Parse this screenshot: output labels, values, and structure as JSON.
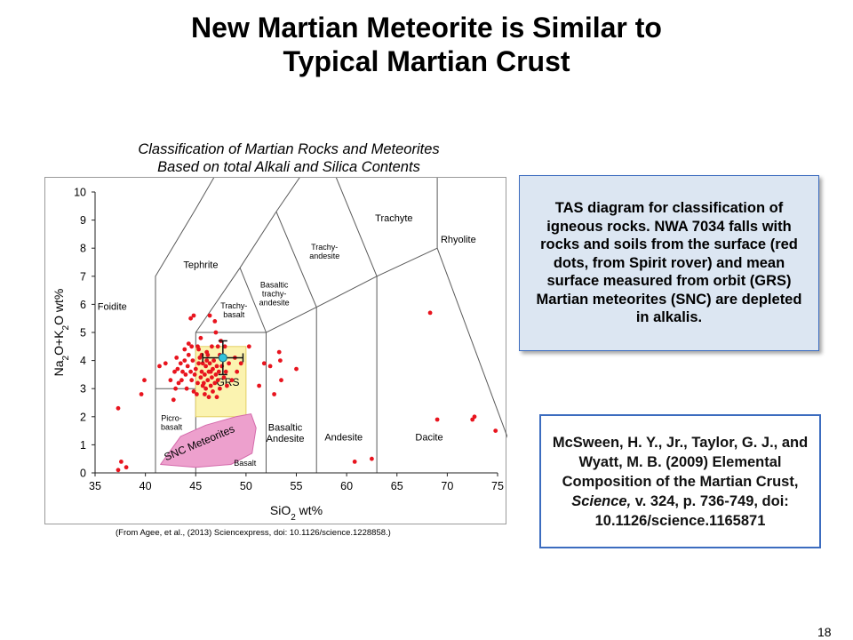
{
  "slide": {
    "title_line1": "New Martian Meteorite is Similar to",
    "title_line2": "Typical Martian Crust",
    "page_number": "18"
  },
  "chart_caption": {
    "line1": "Classification of Martian Rocks and Meteorites",
    "line2": "Based on total Alkali and Silica Contents"
  },
  "source_note": "(From Agee, et al., (2013) Sciencexpress, doi: 10.1126/science.1228858.)",
  "info_box": {
    "text": "TAS diagram for classification of igneous rocks. NWA 7034 falls with rocks and soils from the surface (red dots, from Spirit rover) and mean surface measured from orbit (GRS) Martian meteorites (SNC) are depleted in alkalis."
  },
  "citation": {
    "authors": "McSween, H. Y., Jr., Taylor, G. J., and Wyatt, M. B. (2009) Elemental Composition of the Martian Crust,",
    "journal": "Science,",
    "rest": "v. 324, p. 736-749, doi: 10.1126/science.1165871"
  },
  "colors": {
    "points": "#e8141e",
    "grs_fill": "#fbf3b0",
    "grs_stroke": "#e3cf63",
    "snc_fill": "#eda0cd",
    "snc_stroke": "#d46aab",
    "nwa_point": "#32c3dc",
    "boundary": "#5a5a5a",
    "info_bg": "#dce6f2",
    "box_border": "#3c6cbf"
  },
  "chart_data": {
    "type": "scatter",
    "xlabel": "SiO2 wt%",
    "ylabel": "Na2O+K2O wt%",
    "xlim": [
      35,
      75
    ],
    "ylim": [
      0,
      10
    ],
    "x_ticks": [
      35,
      40,
      45,
      50,
      55,
      60,
      65,
      70,
      75
    ],
    "y_ticks": [
      0,
      1,
      2,
      3,
      4,
      5,
      6,
      7,
      8,
      9,
      10
    ],
    "grid": false,
    "fields": [
      {
        "name": "Foidite",
        "x": 36.7,
        "y": 5.8
      },
      {
        "name": "Tephrite",
        "x": 45.5,
        "y": 7.3
      },
      {
        "name": "Trachy-\nbasalt",
        "x": 48.8,
        "y": 5.85
      },
      {
        "name": "Basaltic\ntrachy-\nandesite",
        "x": 52.8,
        "y": 6.6
      },
      {
        "name": "Trachy-\nandesite",
        "x": 57.8,
        "y": 7.95
      },
      {
        "name": "Trachyte",
        "x": 64.7,
        "y": 8.95
      },
      {
        "name": "Rhyolite",
        "x": 71.1,
        "y": 8.2
      },
      {
        "name": "Picro-\nbasalt",
        "x": 42.6,
        "y": 1.85
      },
      {
        "name": "Basaltic\nAndesite",
        "x": 53.9,
        "y": 1.5
      },
      {
        "name": "Andesite",
        "x": 59.7,
        "y": 1.15
      },
      {
        "name": "Dacite",
        "x": 68.2,
        "y": 1.15
      },
      {
        "name": "Basalt",
        "x": 49.9,
        "y": 0.25
      },
      {
        "name": "GRS",
        "x": 48.2,
        "y": 3.1
      }
    ],
    "annotations": [
      {
        "label": "SNC Meteorites",
        "x": 45.5,
        "y": 0.95,
        "rotation": -23
      }
    ],
    "grs_range": {
      "x": [
        45.0,
        50.0
      ],
      "y": [
        2.0,
        4.5
      ]
    },
    "snc_region": [
      [
        41.5,
        0.3
      ],
      [
        43.5,
        1.3
      ],
      [
        46.0,
        1.7
      ],
      [
        49.0,
        2.0
      ],
      [
        50.5,
        2.1
      ],
      [
        51.0,
        1.6
      ],
      [
        50.6,
        0.7
      ],
      [
        48.5,
        0.3
      ],
      [
        45.0,
        0.2
      ]
    ],
    "nwa7034": {
      "label": "NWA 7034",
      "x": 47.7,
      "y": 4.1,
      "x_err": 2.0,
      "y_err": 0.6
    },
    "series": [
      {
        "name": "Spirit rover rocks and soils",
        "points": [
          [
            37.3,
            2.3
          ],
          [
            37.6,
            0.4
          ],
          [
            38.1,
            0.2
          ],
          [
            37.3,
            0.1
          ],
          [
            39.6,
            2.8
          ],
          [
            39.9,
            3.3
          ],
          [
            41.4,
            3.8
          ],
          [
            42.8,
            2.6
          ],
          [
            43.0,
            3.0
          ],
          [
            43.3,
            3.2
          ],
          [
            42.0,
            3.9
          ],
          [
            44.5,
            5.5
          ],
          [
            44.8,
            5.6
          ],
          [
            45.2,
            4.5
          ],
          [
            45.6,
            4.2
          ],
          [
            46.4,
            5.6
          ],
          [
            46.9,
            5.4
          ],
          [
            47.0,
            5.0
          ],
          [
            47.5,
            4.7
          ],
          [
            42.9,
            3.6
          ],
          [
            43.2,
            3.7
          ],
          [
            43.5,
            3.9
          ],
          [
            43.7,
            3.6
          ],
          [
            43.9,
            4.0
          ],
          [
            44.0,
            3.5
          ],
          [
            44.2,
            3.8
          ],
          [
            44.3,
            4.2
          ],
          [
            44.5,
            3.6
          ],
          [
            44.6,
            3.3
          ],
          [
            44.7,
            4.0
          ],
          [
            44.9,
            3.5
          ],
          [
            45.0,
            3.7
          ],
          [
            45.2,
            3.2
          ],
          [
            45.3,
            3.9
          ],
          [
            45.4,
            4.1
          ],
          [
            45.5,
            3.4
          ],
          [
            45.6,
            3.6
          ],
          [
            45.7,
            3.9
          ],
          [
            45.8,
            3.2
          ],
          [
            45.9,
            3.5
          ],
          [
            46.0,
            3.8
          ],
          [
            46.1,
            4.0
          ],
          [
            46.2,
            3.3
          ],
          [
            46.3,
            3.6
          ],
          [
            46.4,
            3.9
          ],
          [
            46.5,
            3.1
          ],
          [
            46.6,
            3.4
          ],
          [
            46.7,
            3.7
          ],
          [
            46.8,
            4.0
          ],
          [
            46.9,
            3.2
          ],
          [
            47.0,
            3.5
          ],
          [
            47.1,
            3.8
          ],
          [
            47.2,
            3.3
          ],
          [
            47.3,
            3.6
          ],
          [
            47.4,
            4.2
          ],
          [
            47.6,
            3.8
          ],
          [
            47.8,
            3.4
          ],
          [
            48.0,
            3.6
          ],
          [
            48.1,
            3.1
          ],
          [
            44.1,
            3.0
          ],
          [
            43.6,
            3.3
          ],
          [
            44.8,
            2.9
          ],
          [
            45.1,
            2.8
          ],
          [
            45.9,
            2.8
          ],
          [
            46.3,
            2.7
          ],
          [
            46.7,
            2.9
          ],
          [
            47.1,
            2.7
          ],
          [
            46.1,
            4.3
          ],
          [
            45.3,
            4.4
          ],
          [
            44.3,
            4.6
          ],
          [
            43.9,
            4.4
          ],
          [
            46.6,
            4.5
          ],
          [
            47.9,
            4.5
          ],
          [
            42.5,
            3.3
          ],
          [
            43.1,
            4.1
          ],
          [
            46.0,
            3.0
          ],
          [
            46.5,
            3.6
          ],
          [
            45.7,
            3.1
          ],
          [
            46.2,
            4.2
          ],
          [
            47.4,
            3.0
          ],
          [
            44.6,
            4.5
          ],
          [
            45.5,
            4.8
          ],
          [
            47.2,
            4.5
          ],
          [
            48.3,
            3.9
          ],
          [
            48.6,
            3.3
          ],
          [
            48.9,
            4.1
          ],
          [
            49.1,
            3.6
          ],
          [
            49.5,
            3.9
          ],
          [
            50.3,
            4.5
          ],
          [
            51.8,
            3.9
          ],
          [
            52.4,
            3.8
          ],
          [
            51.3,
            3.1
          ],
          [
            52.8,
            2.8
          ],
          [
            53.5,
            3.3
          ],
          [
            53.4,
            4.0
          ],
          [
            55.0,
            3.7
          ],
          [
            53.3,
            4.3
          ],
          [
            60.8,
            0.4
          ],
          [
            62.5,
            0.5
          ],
          [
            68.3,
            5.7
          ],
          [
            69.0,
            1.9
          ],
          [
            72.5,
            1.9
          ],
          [
            72.7,
            2.0
          ],
          [
            74.8,
            1.5
          ]
        ]
      }
    ]
  }
}
